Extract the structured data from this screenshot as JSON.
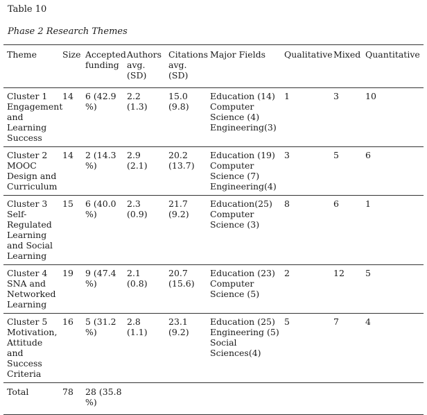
{
  "table_number": "Table 10",
  "table_title": "Phase 2 Research Themes",
  "columns": [
    "Theme",
    "Size",
    "Accepted funding",
    "Authors avg. (SD)",
    "Citations avg. (SD)",
    "Major Fields",
    "Qualitative",
    "Mixed",
    "Quantitative"
  ],
  "rows": [
    {
      "theme": "Cluster 1 Engagement and Learning Success",
      "size": "14",
      "accepted": "6 (42.9 %)",
      "authors": "2.2 (1.3)",
      "citations": "15.0 (9.8)",
      "fields": [
        "Education (14)",
        "Computer Science (4)",
        "Engineering(3)"
      ],
      "qualitative": "1",
      "mixed": "3",
      "quantitative": "10"
    },
    {
      "theme": "Cluster 2 MOOC Design and Curriculum",
      "size": "14",
      "accepted": "2 (14.3 %)",
      "authors": "2.9 (2.1)",
      "citations": "20.2 (13.7)",
      "fields": [
        "Education (19)",
        "Computer Science (7)",
        "Engineering(4)"
      ],
      "qualitative": "3",
      "mixed": "5",
      "quantitative": "6"
    },
    {
      "theme": "Cluster 3 Self-Regulated Learning and Social Learning",
      "size": "15",
      "accepted": "6 (40.0 %)",
      "authors": "2.3 (0.9)",
      "citations": "21.7 (9.2)",
      "fields": [
        "Education(25)",
        "Computer Science (3)"
      ],
      "qualitative": "8",
      "mixed": "6",
      "quantitative": "1"
    },
    {
      "theme": "Cluster 4 SNA and Networked Learning",
      "size": "19",
      "accepted": "9 (47.4 %)",
      "authors": "2.1 (0.8)",
      "citations": "20.7 (15.6)",
      "fields": [
        "Education (23)",
        "Computer Science (5)"
      ],
      "qualitative": "2",
      "mixed": "12",
      "quantitative": "5"
    },
    {
      "theme": "Cluster 5 Motivation, Attitude and Success Criteria",
      "size": "16",
      "accepted": "5 (31.2 %)",
      "authors": "2.8 (1.1)",
      "citations": "23.1 (9.2)",
      "fields": [
        "Education (25)",
        "Engineering (5)",
        "Social Sciences(4)"
      ],
      "qualitative": "5",
      "mixed": "7",
      "quantitative": "4"
    }
  ],
  "total": {
    "label": "Total",
    "size": "78",
    "accepted": "28 (35.8 %)"
  }
}
